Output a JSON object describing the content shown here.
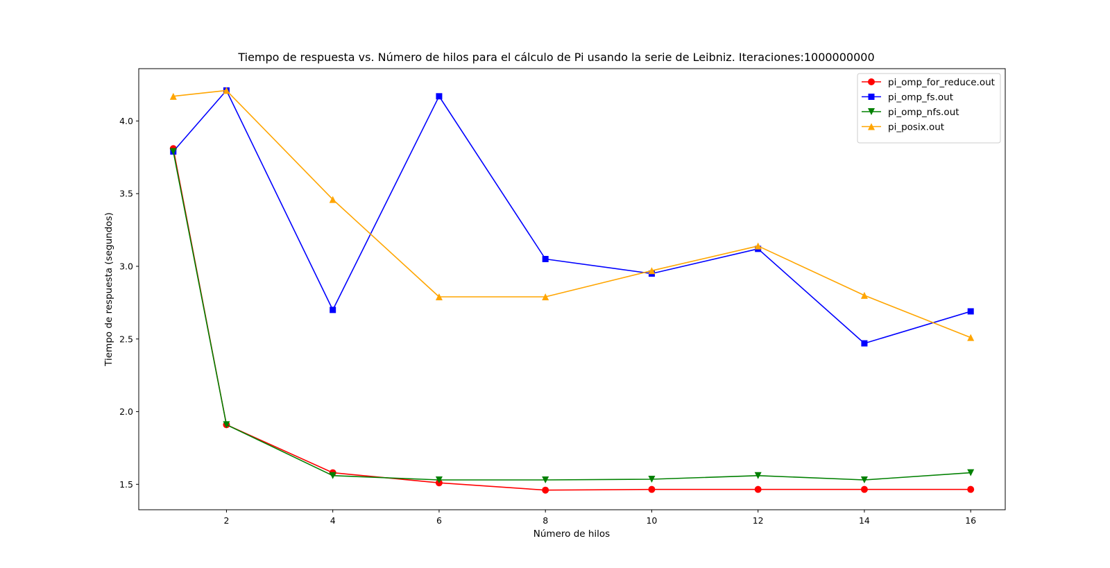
{
  "chart_data": {
    "type": "line",
    "title": "Tiempo de respuesta vs. Número de hilos para el cálculo de Pi usando la serie de Leibniz. Iteraciones:1000000000",
    "xlabel": "Número de hilos",
    "ylabel": "Tiempo de respuesta (segundos)",
    "x": [
      1,
      2,
      4,
      6,
      8,
      10,
      12,
      14,
      16
    ],
    "xlim": [
      0.35,
      16.65
    ],
    "ylim": [
      1.325,
      4.36
    ],
    "xticks": [
      2,
      4,
      6,
      8,
      10,
      12,
      14,
      16
    ],
    "yticks": [
      1.5,
      2.0,
      2.5,
      3.0,
      3.5,
      4.0
    ],
    "ytick_labels": [
      "1.5",
      "2.0",
      "2.5",
      "3.0",
      "3.5",
      "4.0"
    ],
    "grid": false,
    "legend_position": "top-right",
    "series": [
      {
        "name": "pi_omp_for_reduce.out",
        "color": "#ff0000",
        "marker": "circle",
        "values": [
          3.81,
          1.91,
          1.58,
          1.51,
          1.46,
          1.465,
          1.465,
          1.465,
          1.465
        ]
      },
      {
        "name": "pi_omp_fs.out",
        "color": "#0000ff",
        "marker": "square",
        "values": [
          3.79,
          4.21,
          2.7,
          4.17,
          3.05,
          2.95,
          3.12,
          2.47,
          2.69
        ]
      },
      {
        "name": "pi_omp_nfs.out",
        "color": "#008000",
        "marker": "triangle-down",
        "values": [
          3.79,
          1.91,
          1.56,
          1.53,
          1.53,
          1.535,
          1.56,
          1.53,
          1.58
        ]
      },
      {
        "name": "pi_posix.out",
        "color": "#ffa500",
        "marker": "triangle-up",
        "values": [
          4.17,
          4.21,
          3.46,
          2.79,
          2.79,
          2.97,
          3.14,
          2.8,
          2.51
        ]
      }
    ]
  }
}
